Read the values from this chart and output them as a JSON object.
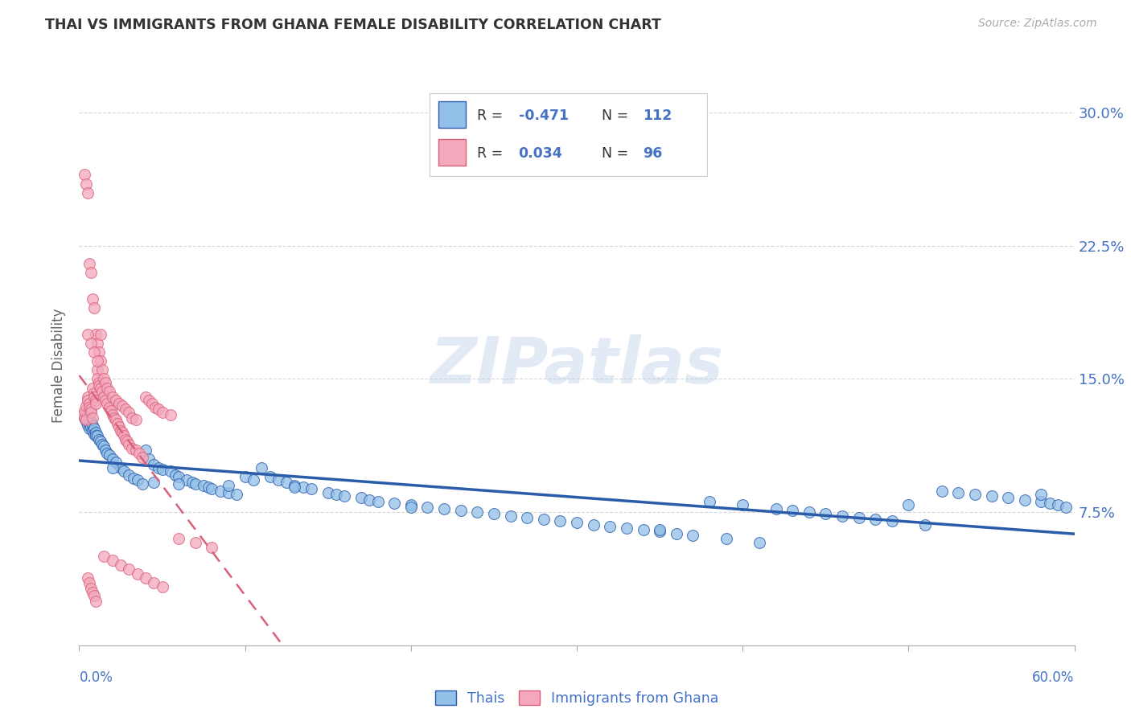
{
  "title": "THAI VS IMMIGRANTS FROM GHANA FEMALE DISABILITY CORRELATION CHART",
  "source": "Source: ZipAtlas.com",
  "ylabel": "Female Disability",
  "ytick_labels": [
    "7.5%",
    "15.0%",
    "22.5%",
    "30.0%"
  ],
  "ytick_values": [
    0.075,
    0.15,
    0.225,
    0.3
  ],
  "xlim": [
    0.0,
    0.6
  ],
  "ylim": [
    0.0,
    0.315
  ],
  "legend_thai": "Thais",
  "legend_ghana": "Immigrants from Ghana",
  "R_thai": -0.471,
  "N_thai": 112,
  "R_ghana": 0.034,
  "N_ghana": 96,
  "color_thai": "#92c0e8",
  "color_ghana": "#f4a8bc",
  "color_trendline_thai": "#2a5caa",
  "color_trendline_ghana": "#d9607a",
  "color_label_blue": "#4472c4",
  "color_grid": "#d8d8d8",
  "background_color": "#ffffff",
  "thai_x": [
    0.003,
    0.004,
    0.005,
    0.005,
    0.006,
    0.006,
    0.007,
    0.007,
    0.008,
    0.008,
    0.009,
    0.009,
    0.01,
    0.01,
    0.011,
    0.012,
    0.013,
    0.014,
    0.015,
    0.016,
    0.017,
    0.018,
    0.02,
    0.022,
    0.025,
    0.027,
    0.03,
    0.033,
    0.035,
    0.038,
    0.04,
    0.042,
    0.045,
    0.048,
    0.05,
    0.055,
    0.058,
    0.06,
    0.065,
    0.068,
    0.07,
    0.075,
    0.078,
    0.08,
    0.085,
    0.09,
    0.095,
    0.1,
    0.105,
    0.11,
    0.115,
    0.12,
    0.125,
    0.13,
    0.135,
    0.14,
    0.15,
    0.155,
    0.16,
    0.17,
    0.175,
    0.18,
    0.19,
    0.2,
    0.21,
    0.22,
    0.23,
    0.24,
    0.25,
    0.26,
    0.27,
    0.28,
    0.29,
    0.3,
    0.31,
    0.32,
    0.33,
    0.34,
    0.35,
    0.36,
    0.37,
    0.38,
    0.39,
    0.4,
    0.41,
    0.42,
    0.43,
    0.44,
    0.45,
    0.46,
    0.47,
    0.48,
    0.49,
    0.5,
    0.51,
    0.52,
    0.53,
    0.54,
    0.55,
    0.56,
    0.57,
    0.58,
    0.585,
    0.59,
    0.595,
    0.2,
    0.35,
    0.58,
    0.02,
    0.045,
    0.06,
    0.09,
    0.13
  ],
  "thai_y": [
    0.128,
    0.126,
    0.127,
    0.124,
    0.125,
    0.122,
    0.126,
    0.123,
    0.124,
    0.121,
    0.122,
    0.119,
    0.12,
    0.118,
    0.118,
    0.116,
    0.115,
    0.113,
    0.112,
    0.11,
    0.108,
    0.107,
    0.105,
    0.103,
    0.1,
    0.098,
    0.096,
    0.094,
    0.093,
    0.091,
    0.11,
    0.105,
    0.102,
    0.1,
    0.099,
    0.098,
    0.096,
    0.095,
    0.093,
    0.092,
    0.091,
    0.09,
    0.089,
    0.088,
    0.087,
    0.086,
    0.085,
    0.095,
    0.093,
    0.1,
    0.095,
    0.093,
    0.092,
    0.09,
    0.089,
    0.088,
    0.086,
    0.085,
    0.084,
    0.083,
    0.082,
    0.081,
    0.08,
    0.079,
    0.078,
    0.077,
    0.076,
    0.075,
    0.074,
    0.073,
    0.072,
    0.071,
    0.07,
    0.069,
    0.068,
    0.067,
    0.066,
    0.065,
    0.064,
    0.063,
    0.062,
    0.081,
    0.06,
    0.079,
    0.058,
    0.077,
    0.076,
    0.075,
    0.074,
    0.073,
    0.072,
    0.071,
    0.07,
    0.079,
    0.068,
    0.087,
    0.086,
    0.085,
    0.084,
    0.083,
    0.082,
    0.081,
    0.08,
    0.079,
    0.078,
    0.078,
    0.065,
    0.085,
    0.1,
    0.092,
    0.091,
    0.09,
    0.089
  ],
  "ghana_x": [
    0.002,
    0.003,
    0.003,
    0.004,
    0.004,
    0.005,
    0.005,
    0.006,
    0.006,
    0.007,
    0.007,
    0.008,
    0.008,
    0.009,
    0.009,
    0.01,
    0.01,
    0.011,
    0.011,
    0.012,
    0.012,
    0.013,
    0.014,
    0.015,
    0.016,
    0.017,
    0.018,
    0.019,
    0.02,
    0.021,
    0.022,
    0.023,
    0.024,
    0.025,
    0.026,
    0.027,
    0.028,
    0.029,
    0.03,
    0.032,
    0.034,
    0.036,
    0.038,
    0.04,
    0.042,
    0.044,
    0.046,
    0.048,
    0.05,
    0.055,
    0.003,
    0.004,
    0.005,
    0.006,
    0.007,
    0.008,
    0.009,
    0.01,
    0.011,
    0.012,
    0.013,
    0.014,
    0.015,
    0.016,
    0.017,
    0.018,
    0.02,
    0.022,
    0.024,
    0.026,
    0.028,
    0.03,
    0.032,
    0.034,
    0.005,
    0.007,
    0.009,
    0.011,
    0.013,
    0.005,
    0.006,
    0.007,
    0.008,
    0.009,
    0.01,
    0.015,
    0.02,
    0.025,
    0.03,
    0.035,
    0.04,
    0.045,
    0.05,
    0.06,
    0.07,
    0.08
  ],
  "ghana_y": [
    0.13,
    0.128,
    0.132,
    0.127,
    0.135,
    0.14,
    0.138,
    0.136,
    0.134,
    0.133,
    0.131,
    0.145,
    0.128,
    0.142,
    0.14,
    0.138,
    0.136,
    0.155,
    0.15,
    0.148,
    0.146,
    0.145,
    0.143,
    0.14,
    0.138,
    0.136,
    0.134,
    0.132,
    0.13,
    0.128,
    0.127,
    0.125,
    0.123,
    0.121,
    0.12,
    0.118,
    0.116,
    0.115,
    0.113,
    0.111,
    0.11,
    0.108,
    0.106,
    0.14,
    0.138,
    0.136,
    0.134,
    0.133,
    0.131,
    0.13,
    0.265,
    0.26,
    0.255,
    0.215,
    0.21,
    0.195,
    0.19,
    0.175,
    0.17,
    0.165,
    0.16,
    0.155,
    0.15,
    0.148,
    0.145,
    0.143,
    0.14,
    0.138,
    0.136,
    0.135,
    0.133,
    0.131,
    0.128,
    0.127,
    0.175,
    0.17,
    0.165,
    0.16,
    0.175,
    0.038,
    0.035,
    0.032,
    0.03,
    0.028,
    0.025,
    0.05,
    0.048,
    0.045,
    0.043,
    0.04,
    0.038,
    0.035,
    0.033,
    0.06,
    0.058,
    0.055
  ]
}
